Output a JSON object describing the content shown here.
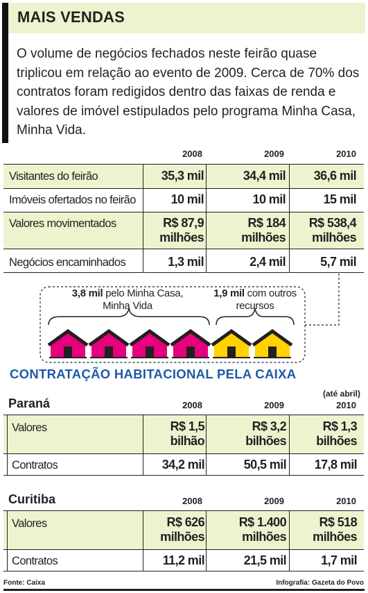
{
  "header": {
    "title": "MAIS VENDAS"
  },
  "intro": "O volume de negócios fechados neste feirão quase triplicou em relação ao evento de 2009. Cerca de 70% dos contratos foram redigidos dentro das faixas de renda e valores de imóvel estipulados pelo programa Minha Casa, Minha Vida.",
  "table1": {
    "years": [
      "2008",
      "2009",
      "2010"
    ],
    "rows": [
      {
        "label": "Visitantes do feirão",
        "values": [
          "35,3 mil",
          "34,4 mil",
          "36,6 mil"
        ]
      },
      {
        "label": "Imóveis ofertados no feirão",
        "values": [
          "10 mil",
          "10 mil",
          "15 mil"
        ]
      },
      {
        "label": "Valores movimentados",
        "values": [
          "R$ 87,9 milhões",
          "R$ 184 milhões",
          "R$ 538,4 milhões"
        ]
      },
      {
        "label": "Negócios encaminhados",
        "values": [
          "1,3 mil",
          "2,4 mil",
          "5,7 mil"
        ]
      }
    ]
  },
  "callout": {
    "mcmv_bold": "3,8 mil",
    "mcmv_text": "pelo Minha Casa, Minha Vida",
    "other_bold": "1,9 mil",
    "other_text": "com outros recursos",
    "colors": {
      "mcmv": "#e6007e",
      "other": "#ffd200"
    },
    "mcmv_houses": 4,
    "other_houses": 2
  },
  "section2": {
    "title": "CONTRATAÇÃO HABITACIONAL PELA CAIXA",
    "parana": {
      "name": "Paraná",
      "note": "(até abril)",
      "years": [
        "2008",
        "2009",
        "2010"
      ],
      "rows": [
        {
          "label": "Valores",
          "values": [
            "R$ 1,5 bilhão",
            "R$ 3,2 bilhões",
            "R$ 1,3 bilhões"
          ]
        },
        {
          "label": "Contratos",
          "values": [
            "34,2 mil",
            "50,5 mil",
            "17,8 mil"
          ]
        }
      ]
    },
    "curitiba": {
      "name": "Curitiba",
      "years": [
        "2008",
        "2009",
        "2010"
      ],
      "rows": [
        {
          "label": "Valores",
          "values": [
            "R$ 626 milhões",
            "R$ 1.400 milhões",
            "R$ 518 milhões"
          ]
        },
        {
          "label": "Contratos",
          "values": [
            "11,2 mil",
            "21,5 mil",
            "1,7 mil"
          ]
        }
      ]
    }
  },
  "footer": {
    "source": "Fonte: Caixa",
    "credit": "Infografia: Gazeta do Povo"
  }
}
